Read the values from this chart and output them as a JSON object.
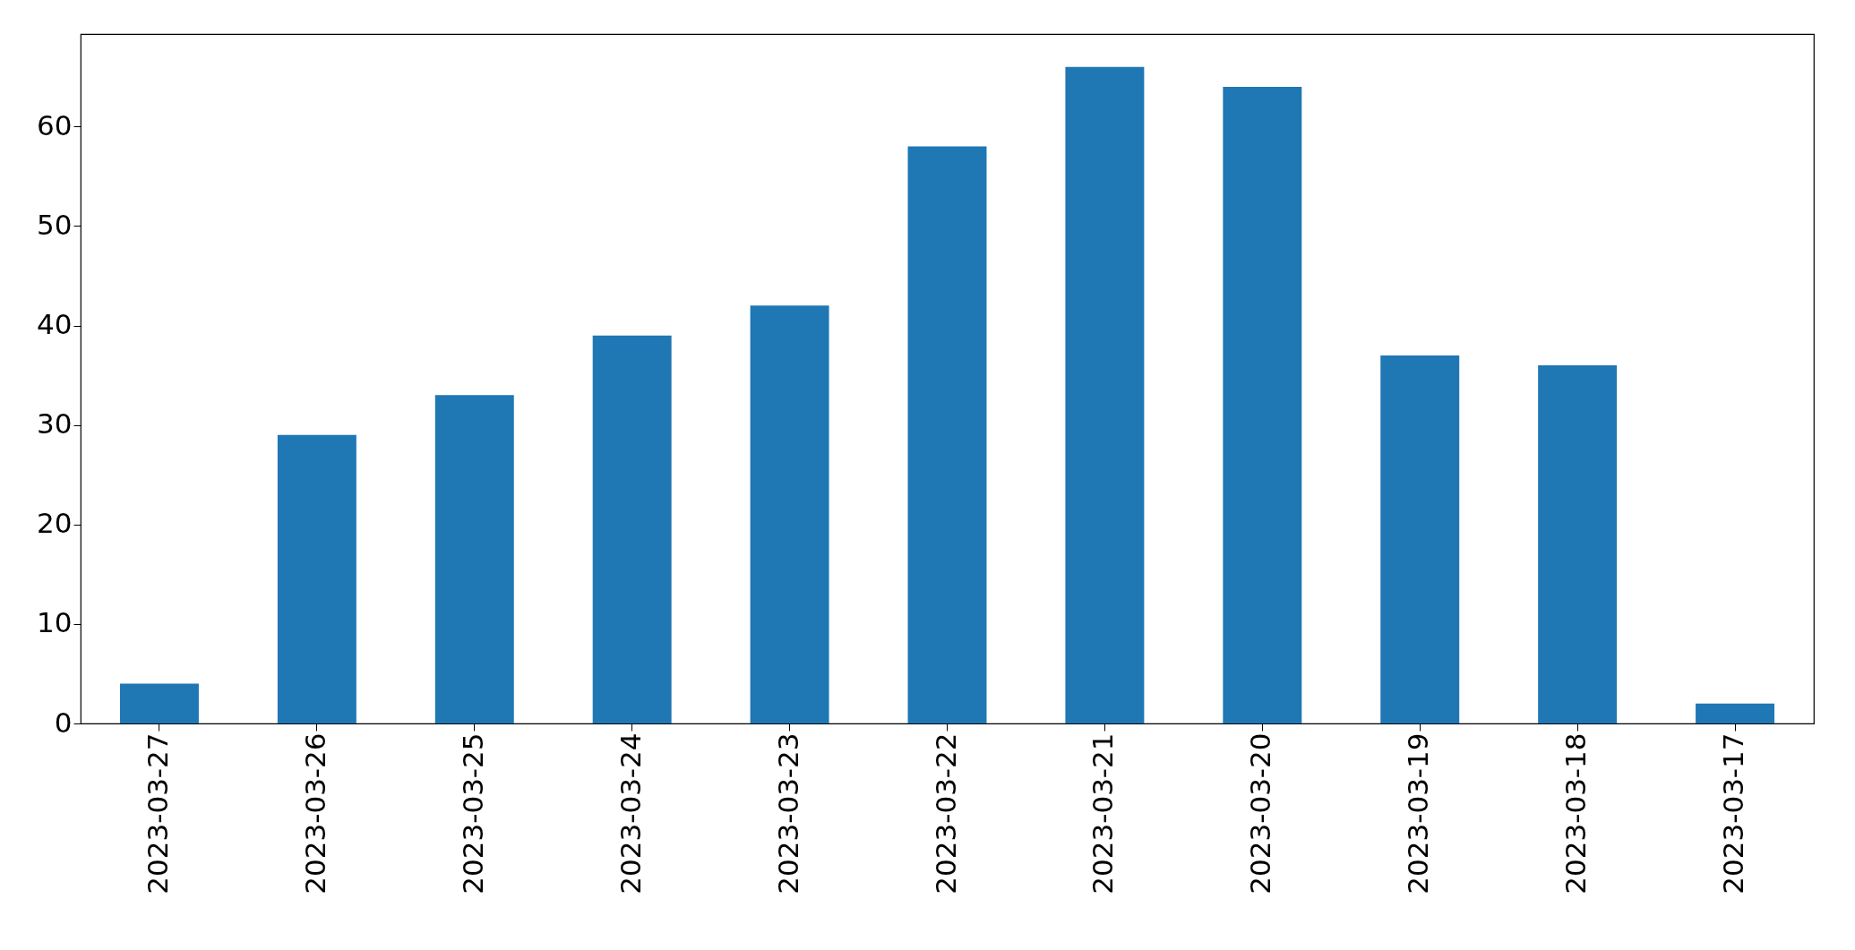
{
  "chart_data": {
    "type": "bar",
    "categories": [
      "2023-03-27",
      "2023-03-26",
      "2023-03-25",
      "2023-03-24",
      "2023-03-23",
      "2023-03-22",
      "2023-03-21",
      "2023-03-20",
      "2023-03-19",
      "2023-03-18",
      "2023-03-17"
    ],
    "values": [
      4,
      29,
      33,
      39,
      42,
      58,
      66,
      64,
      37,
      36,
      2
    ],
    "color": "#1f77b4",
    "ylim": [
      0,
      69.3
    ],
    "yticks": [
      0,
      10,
      20,
      30,
      40,
      50,
      60
    ],
    "grid": false
  }
}
